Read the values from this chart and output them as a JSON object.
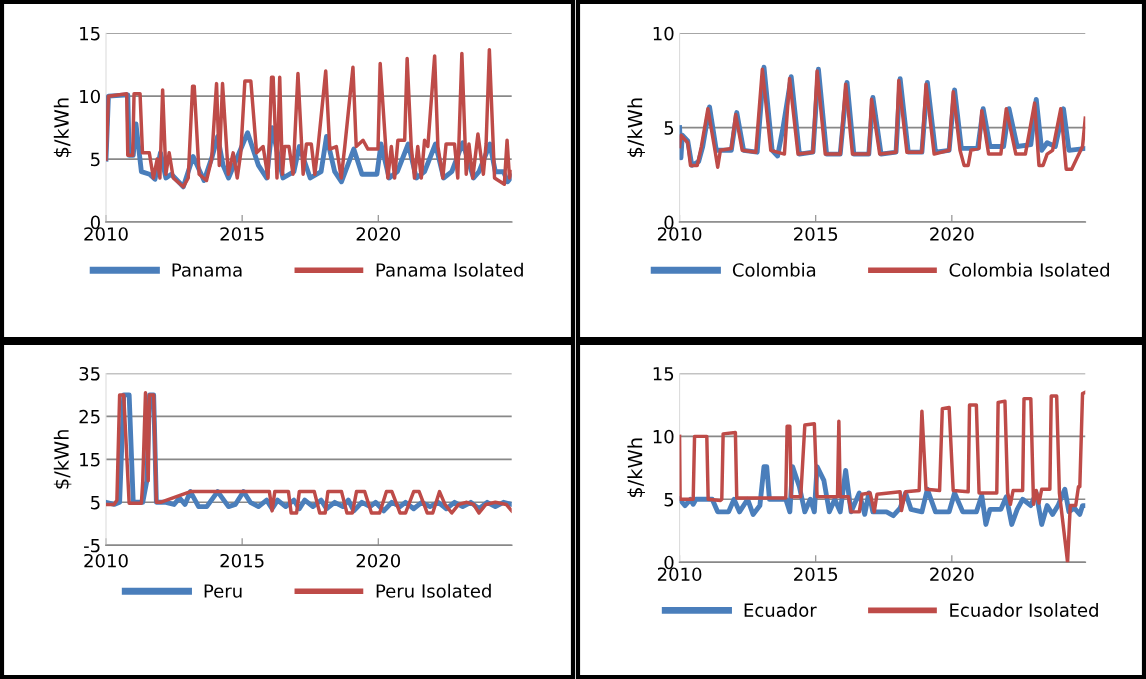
{
  "chart_data": [
    {
      "type": "line",
      "ylabel": "$/kWh",
      "xlim": [
        2010,
        2024.9
      ],
      "xticks": [
        2010,
        2015,
        2020
      ],
      "ylim": [
        0,
        15
      ],
      "yticks": [
        0,
        5,
        10,
        15
      ],
      "grid": "y",
      "legend": "bottom",
      "marker": "none",
      "line_style": "solid",
      "series": [
        {
          "name": "Panama",
          "color": "#4a7ebb",
          "x": [
            2010,
            2010.09,
            2010.8,
            2010.85,
            2011.0,
            2011.1,
            2011.3,
            2011.6,
            2011.8,
            2012.0,
            2012.2,
            2012.4,
            2012.84,
            2013.2,
            2013.6,
            2013.9,
            2014.1,
            2014.3,
            2014.5,
            2014.95,
            2015.2,
            2015.6,
            2015.9,
            2016.1,
            2016.5,
            2016.9,
            2017.1,
            2017.5,
            2017.9,
            2018.1,
            2018.4,
            2018.65,
            2019.1,
            2019.4,
            2019.95,
            2020.1,
            2020.4,
            2020.7,
            2021.1,
            2021.4,
            2021.7,
            2022.1,
            2022.4,
            2022.7,
            2023.1,
            2023.5,
            2023.7,
            2024.1,
            2024.3,
            2024.6,
            2024.75,
            2024.9
          ],
          "values": [
            5,
            10,
            10.1,
            5.3,
            5.3,
            7.8,
            4,
            3.8,
            3.4,
            5.5,
            3.5,
            3.8,
            2.8,
            5.2,
            3.3,
            5.2,
            6.8,
            4.5,
            3.5,
            5.8,
            7.1,
            4.5,
            3.5,
            7.5,
            3.5,
            4,
            6,
            3.5,
            4,
            6.8,
            4,
            3.2,
            5.8,
            3.8,
            3.8,
            6.2,
            3.5,
            4,
            6.2,
            3.5,
            4,
            6.2,
            3.5,
            4,
            6.3,
            3.5,
            4,
            6.2,
            4,
            4,
            3.2,
            3.6
          ]
        },
        {
          "name": "Panama Isolated",
          "color": "#be4b48",
          "x": [
            2010,
            2010.09,
            2010.76,
            2010.8,
            2010.98,
            2011.03,
            2011.25,
            2011.34,
            2011.59,
            2011.74,
            2011.88,
            2011.98,
            2012.08,
            2012.2,
            2012.32,
            2012.47,
            2012.84,
            2013.02,
            2013.18,
            2013.24,
            2013.42,
            2013.69,
            2013.88,
            2014.06,
            2014.16,
            2014.28,
            2014.49,
            2014.67,
            2014.82,
            2014.95,
            2015.1,
            2015.32,
            2015.53,
            2015.77,
            2015.95,
            2016.08,
            2016.14,
            2016.28,
            2016.38,
            2016.48,
            2016.56,
            2016.72,
            2016.87,
            2017.05,
            2017.24,
            2017.36,
            2017.54,
            2017.67,
            2017.79,
            2018.07,
            2018.22,
            2018.46,
            2018.64,
            2018.77,
            2019.07,
            2019.19,
            2019.44,
            2019.62,
            2019.99,
            2020.07,
            2020.35,
            2020.48,
            2020.6,
            2020.72,
            2020.97,
            2021.06,
            2021.21,
            2021.33,
            2021.45,
            2021.58,
            2021.7,
            2021.82,
            2022.07,
            2022.19,
            2022.37,
            2022.49,
            2022.8,
            2022.92,
            2023.07,
            2023.23,
            2023.33,
            2023.47,
            2023.66,
            2023.86,
            2023.96,
            2024.08,
            2024.27,
            2024.63,
            2024.73,
            2024.82,
            2024.9
          ],
          "values": [
            5,
            10,
            10.2,
            5.3,
            5.3,
            10.2,
            10.2,
            5.5,
            5.5,
            3.5,
            5,
            3.5,
            10.5,
            3.8,
            5.5,
            3.5,
            2.8,
            3.5,
            10.8,
            10.8,
            3.8,
            3.3,
            5,
            11,
            4.5,
            11,
            3.8,
            5.5,
            3.5,
            5.5,
            11.2,
            11.2,
            5.5,
            6,
            3.5,
            11.5,
            11.5,
            3.5,
            11.5,
            3.8,
            6,
            6,
            3.8,
            11.8,
            3.8,
            6.2,
            6.2,
            3.8,
            6,
            12,
            5.8,
            6,
            3.5,
            6,
            12.3,
            6,
            6.5,
            5.8,
            5.8,
            12.6,
            3.5,
            6,
            3.5,
            6.5,
            6.5,
            13,
            6,
            3.5,
            6,
            3.5,
            6.5,
            6,
            13.2,
            6,
            3.5,
            6.2,
            6.2,
            3.5,
            13.4,
            3.8,
            6.2,
            3.5,
            7,
            3.8,
            6.2,
            13.7,
            3.5,
            3,
            6.5,
            3.5,
            4
          ]
        }
      ]
    },
    {
      "type": "line",
      "ylabel": "$/kWh",
      "xlim": [
        2010,
        2024.9
      ],
      "xticks": [
        2010,
        2015,
        2020
      ],
      "ylim": [
        0,
        10
      ],
      "yticks": [
        0,
        5,
        10
      ],
      "grid": "y",
      "legend": "bottom",
      "marker": "none",
      "line_style": "solid",
      "series": [
        {
          "name": "Colombia",
          "color": "#4a7ebb",
          "x": [
            2010,
            2010.05,
            2010.1,
            2010.3,
            2010.45,
            2010.7,
            2010.85,
            2011.1,
            2011.35,
            2011.9,
            2012.1,
            2012.35,
            2012.85,
            2013.1,
            2013.4,
            2013.6,
            2013.8,
            2014.1,
            2014.4,
            2014.9,
            2015.1,
            2015.4,
            2015.9,
            2016.15,
            2016.4,
            2016.95,
            2017.1,
            2017.4,
            2017.95,
            2018.1,
            2018.4,
            2018.9,
            2019.1,
            2019.4,
            2019.9,
            2020.1,
            2020.35,
            2020.95,
            2021.15,
            2021.4,
            2021.9,
            2022.1,
            2022.4,
            2022.9,
            2023.1,
            2023.3,
            2023.5,
            2023.8,
            2024.1,
            2024.3,
            2024.9
          ],
          "values": [
            5,
            3.4,
            4.6,
            4.3,
            3,
            3.2,
            4,
            6.1,
            3.8,
            3.8,
            5.8,
            3.8,
            3.7,
            8.2,
            3.8,
            3.5,
            5,
            7.7,
            3.6,
            3.7,
            8.1,
            3.6,
            3.6,
            7.4,
            3.6,
            3.6,
            6.6,
            3.6,
            3.7,
            7.6,
            3.7,
            3.7,
            7.4,
            3.7,
            3.8,
            7,
            3.9,
            3.9,
            6,
            4,
            4,
            6,
            4,
            4.1,
            6.5,
            3.8,
            4.2,
            4,
            6,
            3.8,
            3.9
          ]
        },
        {
          "name": "Colombia Isolated",
          "color": "#be4b48",
          "x": [
            2010,
            2010.05,
            2010.3,
            2010.4,
            2010.65,
            2010.8,
            2011.04,
            2011.3,
            2011.4,
            2011.5,
            2011.9,
            2012.06,
            2012.3,
            2012.8,
            2013.04,
            2013.35,
            2013.85,
            2014.04,
            2014.35,
            2014.9,
            2015.05,
            2015.35,
            2015.9,
            2016.1,
            2016.35,
            2016.95,
            2017.05,
            2017.35,
            2017.95,
            2018.05,
            2018.35,
            2018.9,
            2019.05,
            2019.35,
            2019.9,
            2020.05,
            2020.3,
            2020.45,
            2020.6,
            2020.7,
            2021.0,
            2021.1,
            2021.35,
            2021.8,
            2022.0,
            2022.35,
            2022.7,
            2023.04,
            2023.2,
            2023.35,
            2023.5,
            2023.7,
            2024.0,
            2024.2,
            2024.4,
            2024.6,
            2024.8,
            2024.9
          ],
          "values": [
            4,
            4.6,
            4.2,
            3,
            3,
            4,
            6,
            3.8,
            2.9,
            3.8,
            3.9,
            5.7,
            3.8,
            3.7,
            8.1,
            3.8,
            3.6,
            7.6,
            3.6,
            3.7,
            8,
            3.6,
            3.6,
            7.3,
            3.6,
            3.6,
            6.5,
            3.6,
            3.7,
            7.5,
            3.7,
            3.7,
            7.3,
            3.6,
            3.8,
            6.9,
            3.8,
            3,
            3,
            3.8,
            3.9,
            5.9,
            3.6,
            3.6,
            6,
            3.6,
            3.6,
            6.3,
            3,
            3,
            3.6,
            3.8,
            6,
            2.8,
            2.8,
            3.4,
            4,
            5.5
          ]
        }
      ]
    },
    {
      "type": "line",
      "ylabel": "$/kWh",
      "xlim": [
        2010,
        2024.9
      ],
      "xticks": [
        2010,
        2015,
        2020
      ],
      "ylim": [
        -5,
        35
      ],
      "yticks": [
        -5,
        5,
        15,
        25,
        35
      ],
      "grid": "y",
      "legend": "bottom",
      "marker": "none",
      "line_style": "solid",
      "series": [
        {
          "name": "Peru",
          "color": "#4a7ebb",
          "x": [
            2010,
            2010.3,
            2010.5,
            2010.65,
            2010.85,
            2011.0,
            2011.35,
            2011.5,
            2011.6,
            2011.75,
            2011.85,
            2012.2,
            2012.5,
            2012.7,
            2012.9,
            2013.1,
            2013.4,
            2013.7,
            2014.1,
            2014.5,
            2014.75,
            2015.05,
            2015.3,
            2015.6,
            2015.9,
            2016.1,
            2016.3,
            2016.6,
            2016.9,
            2017.1,
            2017.3,
            2017.6,
            2017.9,
            2018.1,
            2018.4,
            2018.7,
            2018.9,
            2019.1,
            2019.4,
            2019.7,
            2019.9,
            2020.2,
            2020.5,
            2020.8,
            2021.0,
            2021.3,
            2021.6,
            2021.9,
            2022.2,
            2022.5,
            2022.8,
            2023.1,
            2023.4,
            2023.7,
            2024.0,
            2024.3,
            2024.6,
            2024.9
          ],
          "values": [
            5,
            4.5,
            5,
            30,
            30,
            5,
            5,
            10,
            30,
            30,
            5,
            5,
            4.5,
            6,
            4.5,
            7.5,
            4,
            4,
            7.5,
            4,
            4.5,
            7.5,
            5,
            4,
            5.5,
            3.5,
            5.5,
            4,
            5.5,
            3.5,
            5.5,
            4,
            5.5,
            3.5,
            5,
            4,
            5.5,
            3,
            5,
            4,
            5,
            3,
            5,
            4,
            5,
            3.5,
            5,
            4,
            5,
            3.5,
            5,
            4,
            5,
            3.5,
            5,
            4,
            5,
            4.5
          ]
        },
        {
          "name": "Peru Isolated",
          "color": "#be4b48",
          "x": [
            2010,
            2010.3,
            2010.4,
            2010.5,
            2010.65,
            2010.85,
            2011.3,
            2011.35,
            2011.45,
            2011.55,
            2011.6,
            2011.75,
            2011.85,
            2012.0,
            2013.1,
            2016.0,
            2016.1,
            2016.2,
            2016.7,
            2016.8,
            2017.0,
            2017.1,
            2017.65,
            2017.85,
            2018.05,
            2018.15,
            2018.65,
            2018.85,
            2019.05,
            2019.2,
            2019.5,
            2019.75,
            2020.05,
            2020.3,
            2020.5,
            2020.8,
            2021.0,
            2021.3,
            2021.5,
            2021.8,
            2022.0,
            2022.25,
            2022.45,
            2022.7,
            2022.95,
            2023.25,
            2023.5,
            2023.7,
            2023.95,
            2024.3,
            2024.7,
            2024.9
          ],
          "values": [
            4.5,
            4.5,
            5.5,
            30,
            30,
            4.8,
            4.8,
            10,
            30.5,
            10,
            30,
            30,
            5,
            5,
            7.5,
            7.5,
            3,
            7.5,
            7.5,
            2.5,
            2.5,
            7.5,
            7.5,
            2.5,
            2.5,
            7.5,
            7.5,
            2.5,
            2.5,
            7.5,
            7.5,
            2.5,
            2.5,
            7.5,
            7.5,
            2.5,
            2.5,
            7.5,
            7.5,
            2.5,
            2.5,
            7.5,
            4.5,
            2.5,
            4.5,
            5,
            4.5,
            2.5,
            4.5,
            5,
            4.5,
            3
          ]
        }
      ]
    },
    {
      "type": "line",
      "ylabel": "$/kWh",
      "xlim": [
        2010,
        2024.9
      ],
      "xticks": [
        2010,
        2015,
        2020
      ],
      "ylim": [
        0,
        15
      ],
      "yticks": [
        0,
        5,
        10,
        15
      ],
      "grid": "y",
      "legend": "bottom",
      "marker": "none",
      "line_style": "solid",
      "series": [
        {
          "name": "Ecuador",
          "color": "#4a7ebb",
          "x": [
            2010,
            2010.2,
            2010.4,
            2010.5,
            2010.6,
            2011.2,
            2011.4,
            2011.8,
            2012.0,
            2012.2,
            2012.5,
            2012.7,
            2012.95,
            2013.1,
            2013.2,
            2013.3,
            2013.9,
            2014.05,
            2014.15,
            2014.4,
            2014.6,
            2014.8,
            2014.95,
            2015.05,
            2015.3,
            2015.5,
            2015.7,
            2015.9,
            2016.1,
            2016.3,
            2016.6,
            2016.8,
            2016.95,
            2017.1,
            2017.6,
            2017.85,
            2018.1,
            2018.3,
            2018.5,
            2018.9,
            2019.1,
            2019.4,
            2019.9,
            2020.1,
            2020.4,
            2020.9,
            2021.1,
            2021.25,
            2021.4,
            2021.8,
            2022.0,
            2022.2,
            2022.4,
            2022.6,
            2022.9,
            2023.1,
            2023.3,
            2023.5,
            2023.7,
            2023.9,
            2024.15,
            2024.3,
            2024.5,
            2024.7,
            2024.8,
            2024.9
          ],
          "values": [
            5,
            4.5,
            5,
            4.6,
            5,
            5,
            4,
            4,
            5,
            4,
            5,
            3.8,
            4.5,
            7.6,
            7.6,
            5,
            5,
            4,
            7.6,
            6,
            4,
            5,
            4,
            7.6,
            6.5,
            4,
            5,
            4,
            7.3,
            4,
            5.5,
            3.8,
            5.5,
            4,
            4,
            3.7,
            4.3,
            5.5,
            4.2,
            4,
            5.8,
            4,
            4,
            5.5,
            4,
            4,
            5.3,
            3,
            4.2,
            4.2,
            5.2,
            3,
            4.2,
            5,
            4.5,
            5.5,
            3,
            4.5,
            3.8,
            4.5,
            5.8,
            4,
            4.3,
            3.8,
            4.5,
            4.5
          ]
        },
        {
          "name": "Ecuador Isolated",
          "color": "#be4b48",
          "x": [
            2010,
            2010.02,
            2010.5,
            2010.55,
            2011.0,
            2011.05,
            2011.5,
            2011.55,
            2011.6,
            2012.05,
            2012.1,
            2013.9,
            2013.95,
            2014.05,
            2014.1,
            2014.45,
            2014.6,
            2014.95,
            2015.05,
            2015.8,
            2015.85,
            2015.9,
            2016.2,
            2016.3,
            2016.6,
            2016.7,
            2017.0,
            2017.15,
            2017.25,
            2018.1,
            2018.15,
            2018.3,
            2018.8,
            2018.9,
            2019.05,
            2019.55,
            2019.65,
            2019.9,
            2020.05,
            2020.6,
            2020.65,
            2020.9,
            2021.0,
            2021.65,
            2021.7,
            2021.95,
            2022.05,
            2022.15,
            2022.25,
            2022.6,
            2022.65,
            2022.9,
            2023.0,
            2023.1,
            2023.2,
            2023.3,
            2023.6,
            2023.65,
            2023.85,
            2023.95,
            2024.25,
            2024.35,
            2024.55,
            2024.65,
            2024.7,
            2024.8,
            2024.9
          ],
          "values": [
            10,
            5,
            5,
            10,
            10,
            5,
            4.9,
            5,
            10.2,
            10.3,
            5.1,
            5.1,
            10.8,
            10.8,
            5.2,
            5.2,
            10.9,
            11,
            5.2,
            5.2,
            11.2,
            5.2,
            5.2,
            4,
            4,
            5.4,
            5.5,
            4,
            5.4,
            5.6,
            4.1,
            5.6,
            5.7,
            12,
            5.8,
            5.7,
            12.2,
            12.3,
            5.7,
            5.6,
            12.5,
            12.5,
            5.5,
            5.5,
            12.7,
            12.8,
            5.5,
            4.6,
            5.7,
            5.7,
            13,
            13,
            4.6,
            5.7,
            4.7,
            5.8,
            5.8,
            13.2,
            13.2,
            5.5,
            0,
            4.5,
            4.5,
            6,
            6,
            13.4,
            13.5
          ]
        }
      ]
    }
  ]
}
